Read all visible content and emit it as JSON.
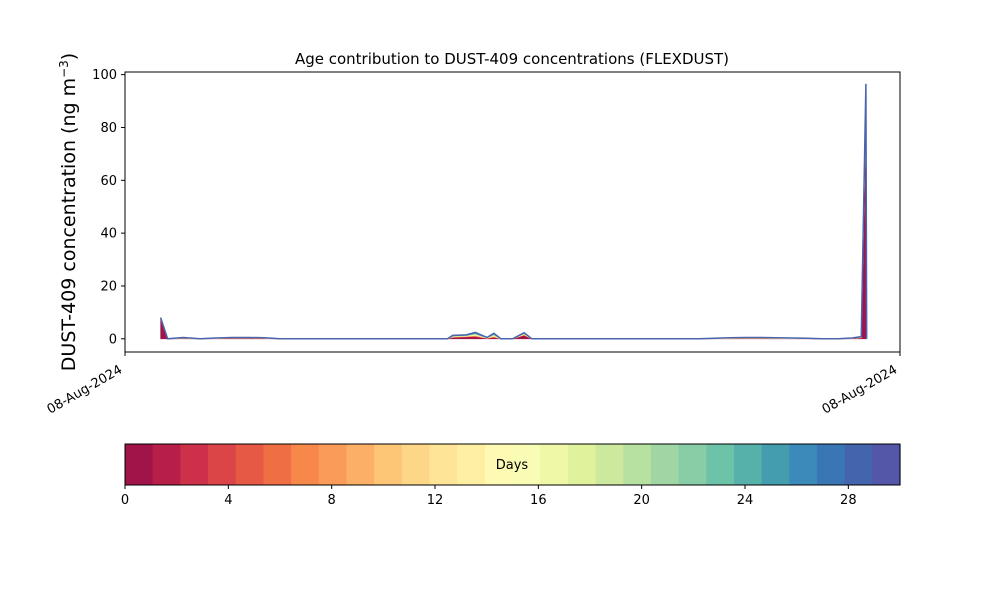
{
  "chart_data": {
    "type": "area",
    "title": "Age contribution to DUST-409 concentrations (FLEXDUST)",
    "ylabel": "DUST-409 concentration (ng m",
    "ylabel_exponent": "−3",
    "ylabel_close": ")",
    "xlabel": "",
    "x_ticks": [
      "08-Aug-2024",
      "08-Aug-2024"
    ],
    "y_ticks": [
      0,
      20,
      40,
      60,
      80,
      100
    ],
    "ylim": [
      -5,
      101
    ],
    "xlim": [
      0,
      100
    ],
    "grid": false,
    "x": [
      4.6,
      5.5,
      7.5,
      9.7,
      11.7,
      13.8,
      16,
      18,
      20,
      22,
      24,
      26,
      28,
      30,
      32,
      34,
      36,
      38,
      40,
      41.6,
      42.3,
      44,
      45.2,
      46.7,
      47.6,
      48.5,
      50,
      51.5,
      52.5,
      54,
      56,
      58,
      60,
      62,
      64,
      66,
      68,
      70,
      72,
      74,
      76,
      78,
      80,
      82,
      84,
      86,
      88,
      90,
      92,
      93.8,
      95,
      95.6,
      95.7
    ],
    "total": [
      8,
      0,
      0.5,
      0,
      0.3,
      0.5,
      0.5,
      0.4,
      0,
      0,
      0,
      0,
      0,
      0,
      0,
      0,
      0,
      0,
      0,
      0,
      1.3,
      1.5,
      2.4,
      0.5,
      2.1,
      0,
      0,
      2.3,
      0,
      0,
      0,
      0,
      0,
      0,
      0,
      0,
      0,
      0,
      0,
      0,
      0.2,
      0.4,
      0.5,
      0.5,
      0.4,
      0.3,
      0.2,
      0,
      0,
      0.3,
      0.8,
      96.5,
      0
    ],
    "fresh_share": [
      0.95,
      0.5,
      0.3,
      0.5,
      0.3,
      0.3,
      0.3,
      0.3,
      0.5,
      0.5,
      0.5,
      0.5,
      0.5,
      0.5,
      0.5,
      0.5,
      0.5,
      0.5,
      0.5,
      0.5,
      0.35,
      0.45,
      0.3,
      0.3,
      0.2,
      0.5,
      0.5,
      0.55,
      0.5,
      0.5,
      0.5,
      0.5,
      0.5,
      0.5,
      0.5,
      0.5,
      0.5,
      0.5,
      0.5,
      0.5,
      0.3,
      0.2,
      0.2,
      0.2,
      0.2,
      0.2,
      0.2,
      0.5,
      0.5,
      0.3,
      0.4,
      0.87,
      0.5
    ],
    "colorbar": {
      "label": "Days",
      "min": 0,
      "max": 30,
      "ticks": [
        0,
        4,
        8,
        12,
        16,
        20,
        24,
        28
      ],
      "colors": [
        "#a0144a",
        "#b81f48",
        "#cd3149",
        "#dc4548",
        "#e65a45",
        "#f06e44",
        "#f78849",
        "#fa9b57",
        "#fcb065",
        "#fdc576",
        "#fed687",
        "#fee497",
        "#feefa3",
        "#fefab4",
        "#f9fcb5",
        "#eef8a6",
        "#e0f29b",
        "#cde99d",
        "#b6e1a0",
        "#9fd6a3",
        "#87cda5",
        "#6dc3a7",
        "#57b1ab",
        "#449dae",
        "#3b8ab9",
        "#3a76b4",
        "#4464ad",
        "#5456a7"
      ]
    }
  }
}
